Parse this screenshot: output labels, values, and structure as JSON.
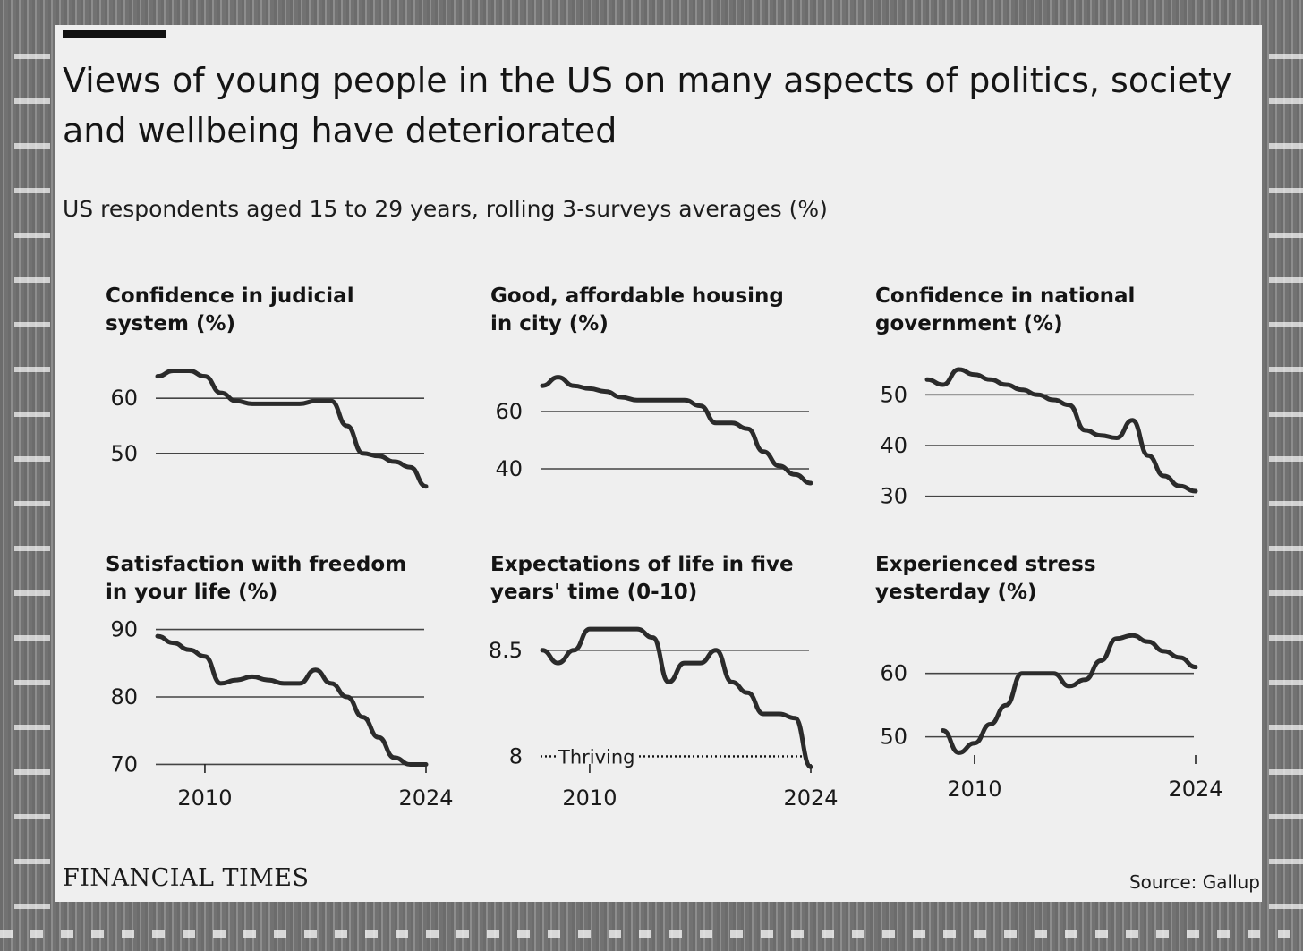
{
  "header": {
    "title": "Views of young people in the US on many aspects of politics, society and wellbeing have deteriorated",
    "subtitle": "US respondents aged 15 to 29 years, rolling 3-surveys averages (%)"
  },
  "footer": {
    "brand": "FINANCIAL TIMES",
    "source": "Source: Gallup"
  },
  "colors": {
    "line": "#2b2b2b",
    "grid": "#444444",
    "background": "#efefef"
  },
  "chart_data": [
    {
      "type": "line",
      "title": "Confidence in judicial system (%)",
      "x": [
        2007,
        2008,
        2009,
        2010,
        2011,
        2012,
        2013,
        2014,
        2015,
        2016,
        2017,
        2018,
        2019,
        2020,
        2021,
        2022,
        2023,
        2024
      ],
      "values": [
        64,
        65,
        65,
        64,
        61,
        59.5,
        59,
        59,
        59,
        59,
        59.5,
        59.5,
        55,
        50,
        49.5,
        48.5,
        47.5,
        44
      ],
      "yticks": [
        "60",
        "50"
      ],
      "ytick_values": [
        60,
        50
      ],
      "ylim": [
        42,
        68
      ],
      "xlim": [
        2007,
        2024
      ],
      "xticks": []
    },
    {
      "type": "line",
      "title": "Good, affordable housing in city (%)",
      "x": [
        2007,
        2008,
        2009,
        2010,
        2011,
        2012,
        2013,
        2014,
        2015,
        2016,
        2017,
        2018,
        2019,
        2020,
        2021,
        2022,
        2023,
        2024
      ],
      "values": [
        69,
        72,
        69,
        68,
        67,
        65,
        64,
        64,
        64,
        64,
        62,
        56,
        56,
        54,
        46,
        41,
        38,
        35
      ],
      "yticks": [
        "60",
        "40"
      ],
      "ytick_values": [
        60,
        40
      ],
      "ylim": [
        30,
        80
      ],
      "xlim": [
        2007,
        2024
      ],
      "xticks": []
    },
    {
      "type": "line",
      "title": "Confidence in national government (%)",
      "x": [
        2007,
        2008,
        2009,
        2010,
        2011,
        2012,
        2013,
        2014,
        2015,
        2016,
        2017,
        2018,
        2019,
        2020,
        2021,
        2022,
        2023,
        2024
      ],
      "values": [
        53,
        52,
        55,
        54,
        53,
        52,
        51,
        50,
        49,
        48,
        43,
        42,
        41.5,
        45,
        38,
        34,
        32,
        31
      ],
      "yticks": [
        "50",
        "40",
        "30"
      ],
      "ytick_values": [
        50,
        40,
        30
      ],
      "ylim": [
        28,
        58
      ],
      "xlim": [
        2007,
        2024
      ],
      "xticks": []
    },
    {
      "type": "line",
      "title": "Satisfaction with freedom in your life (%)",
      "x": [
        2007,
        2008,
        2009,
        2010,
        2011,
        2012,
        2013,
        2014,
        2015,
        2016,
        2017,
        2018,
        2019,
        2020,
        2021,
        2022,
        2023,
        2024
      ],
      "values": [
        89,
        88,
        87,
        86,
        82,
        82.5,
        83,
        82.5,
        82,
        82,
        84,
        82,
        80,
        77,
        74,
        71,
        70,
        70
      ],
      "yticks": [
        "90",
        "80",
        "70"
      ],
      "ytick_values": [
        90,
        80,
        70
      ],
      "ylim": [
        69,
        91
      ],
      "xlim": [
        2007,
        2024
      ],
      "xticks": [
        "2010",
        "2024"
      ],
      "xtick_values": [
        2010,
        2024
      ]
    },
    {
      "type": "line",
      "title": "Expectations of life in five years' time (0-10)",
      "x": [
        2007,
        2008,
        2009,
        2010,
        2011,
        2012,
        2013,
        2014,
        2015,
        2016,
        2017,
        2018,
        2019,
        2020,
        2021,
        2022,
        2023,
        2024
      ],
      "values": [
        8.5,
        8.44,
        8.5,
        8.6,
        8.6,
        8.6,
        8.6,
        8.56,
        8.35,
        8.44,
        8.44,
        8.5,
        8.35,
        8.3,
        8.2,
        8.2,
        8.18,
        7.95
      ],
      "yticks": [
        "8.5",
        "8"
      ],
      "ytick_values": [
        8.5,
        8.0
      ],
      "ylim": [
        7.93,
        8.63
      ],
      "xlim": [
        2007,
        2024
      ],
      "xticks": [
        "2010",
        "2024"
      ],
      "xtick_values": [
        2010,
        2024
      ],
      "reference_line": {
        "label": "Thriving",
        "value": 8.0
      }
    },
    {
      "type": "line",
      "title": "Experienced stress yesterday (%)",
      "x": [
        2008,
        2009,
        2010,
        2011,
        2012,
        2013,
        2014,
        2015,
        2016,
        2017,
        2018,
        2019,
        2020,
        2021,
        2022,
        2023,
        2024
      ],
      "values": [
        51,
        47.5,
        49,
        52,
        55,
        60,
        60,
        60,
        58,
        59,
        62,
        65.5,
        66,
        65,
        63.5,
        62.5,
        61
      ],
      "yticks": [
        "60",
        "50"
      ],
      "ytick_values": [
        60,
        50
      ],
      "ylim": [
        46,
        68
      ],
      "xlim": [
        2007,
        2024
      ],
      "xticks": [
        "2010",
        "2024"
      ],
      "xtick_values": [
        2010,
        2024
      ]
    }
  ]
}
